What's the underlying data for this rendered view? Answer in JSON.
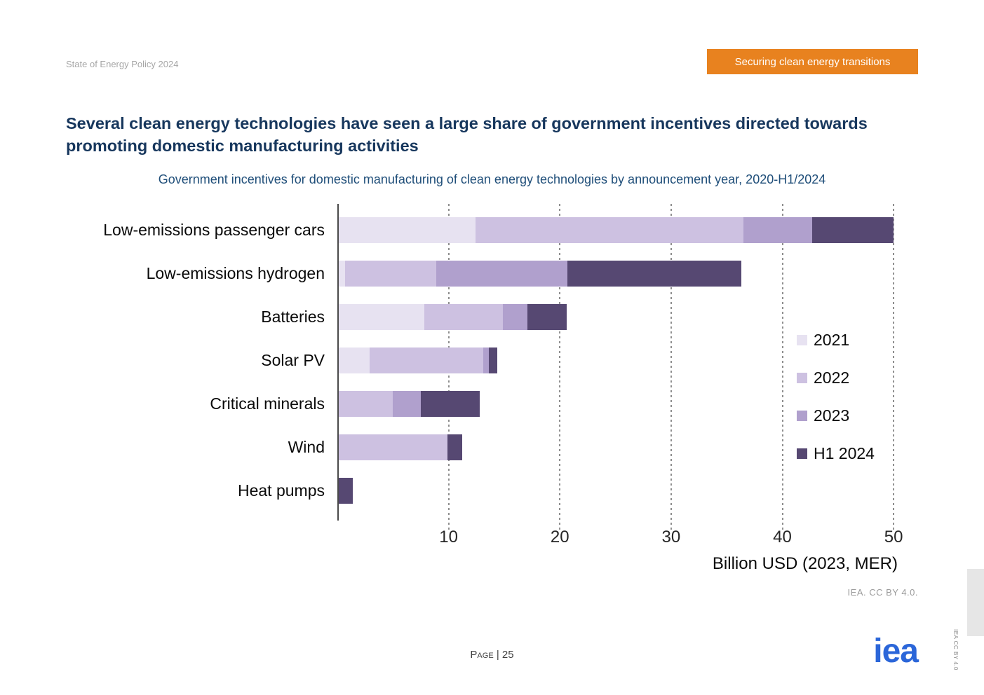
{
  "header": {
    "report_title": "State of Energy Policy 2024",
    "banner_label": "Securing clean energy transitions"
  },
  "slide": {
    "title": "Several clean energy technologies have seen a large share of government incentives directed towards promoting domestic manufacturing activities"
  },
  "chart_data": {
    "type": "bar",
    "orientation": "horizontal",
    "stacked": true,
    "title": "Government incentives for domestic manufacturing of clean energy technologies by announcement year, 2020-H1/2024",
    "categories": [
      "Low-emissions passenger cars",
      "Low-emissions hydrogen",
      "Batteries",
      "Solar PV",
      "Critical minerals",
      "Wind",
      "Heat pumps"
    ],
    "series": [
      {
        "name": "2021",
        "color": "#e7e2f1",
        "values": [
          12.4,
          0.7,
          7.8,
          2.9,
          0,
          0,
          0
        ]
      },
      {
        "name": "2022",
        "color": "#cdc1e1",
        "values": [
          24.1,
          8.2,
          7.1,
          10.2,
          5.0,
          9.9,
          0
        ]
      },
      {
        "name": "2023",
        "color": "#b0a0cd",
        "values": [
          6.2,
          11.8,
          2.2,
          0.5,
          2.5,
          0,
          0
        ]
      },
      {
        "name": "H1 2024",
        "color": "#564872",
        "values": [
          7.3,
          15.6,
          3.5,
          0.8,
          5.3,
          1.3,
          1.4
        ]
      }
    ],
    "xlabel": "Billion USD (2023, MER)",
    "xticks": [
      10,
      20,
      30,
      40,
      50
    ],
    "xlim": [
      0,
      51
    ],
    "ylabel": "",
    "legend_position": "right-inside",
    "grid": "vertical-dotted",
    "source_note": "IEA. CC BY 4.0."
  },
  "footer": {
    "page_label": "Page | 25",
    "logo_text": "iea",
    "side_note": "IEA CC BY 4.0"
  }
}
